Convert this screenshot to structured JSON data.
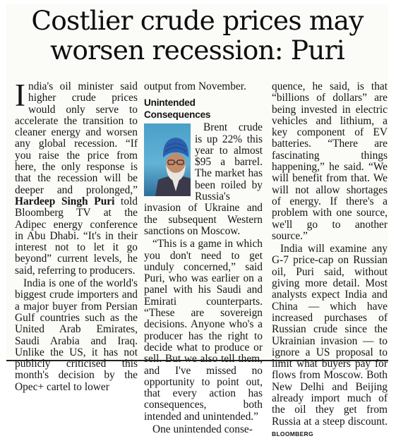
{
  "article": {
    "headline_line1": "Costlier crude prices may",
    "headline_line2": "worsen recession: Puri",
    "subhead": "Unintended Consequences",
    "credit": "BLOOMBERG",
    "col1": {
      "dropcap": "I",
      "p1a": "ndia's oil minister said higher crude prices would only serve to accelerate the transition to cleaner energy and worsen any global recession. “If you raise the price from here, the only response is that the recession will be deeper and prolonged,” ",
      "p1b": "Hardeep Singh Puri",
      "p1c": " told Bloomberg TV at the Adipec energy conference in Abu Dhabi. “It's in their interest not to let it go beyond” current levels, he said, referring to producers.",
      "p2": "India is one of the world's biggest crude importers and a major buyer from Persian Gulf countries such as the United Arab Emirates, Saudi Arabia and Iraq. Unlike the US, it has not publicly criticised this month's decision by the Opec+ cartel to lower"
    },
    "col2": {
      "p0": "output from November.",
      "p1": "Brent crude is up 22% this year to almost $95 a barrel. The market has been roiled by Russia's invasion of Ukraine and the subsequent Western sanctions on Moscow.",
      "p2": "“This is a game in which you don't need to get unduly concerned,” said Puri, who was earlier on a panel with his Saudi and Emirati counterparts. “These are sovereign decisions. Anyone who's a producer has the right to decide what to produce or sell. But we also tell them, and I've missed no opportunity to point out, that every action has consequences, both intended and unintended.”",
      "p3": "One unintended conse-"
    },
    "col3": {
      "p0": "quence, he said, is that “billions of dollars” are being invested in electric vehicles and lithium, a key component of EV batteries. “There are fascinating things happening,” he said. “We will benefit from that. We will not allow shortages of energy. If there's a problem with one source, we'll go to another source.”",
      "p1": "India will examine any G-7 price-cap on Russian oil, Puri said, without giving more detail. Most analysts expect India and China — which have increased purchases of Russian crude since the Ukrainian invasion — to ignore a US proposal to limit what buyers pay for flows from Moscow. Both New Delhi and Beijing already import much of the oil they get from Russia at a steep discount. "
    }
  }
}
